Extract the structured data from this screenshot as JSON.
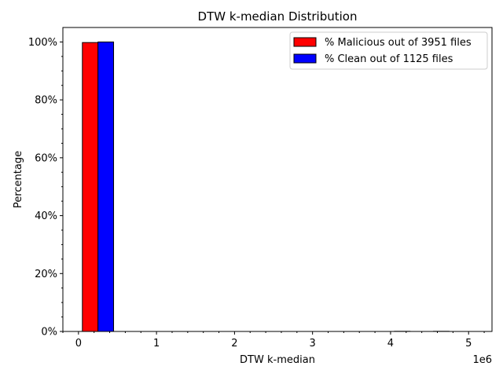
{
  "chart_data": {
    "type": "bar",
    "title": "DTW k-median Distribution",
    "xlabel": "DTW k-median",
    "ylabel": "Percentage",
    "x_offset_text": "1e6",
    "xlim": [
      -200000,
      5300000
    ],
    "ylim": [
      0,
      105
    ],
    "x_ticks": [
      0,
      1000000,
      2000000,
      3000000,
      4000000,
      5000000
    ],
    "x_tick_labels": [
      "0",
      "1",
      "2",
      "3",
      "4",
      "5"
    ],
    "y_ticks": [
      0,
      20,
      40,
      60,
      80,
      100
    ],
    "y_tick_labels": [
      "0%",
      "20%",
      "40%",
      "60%",
      "80%",
      "100%"
    ],
    "bin_edges": [
      50000,
      550000,
      1050000,
      1550000,
      2050000,
      2550000,
      3050000,
      3550000,
      4050000,
      4550000,
      5050000
    ],
    "grid": false,
    "legend_position": "top-right",
    "series": [
      {
        "name": "% Malicious out of 3951 files",
        "color": "#ff0000",
        "values": [
          99.8,
          0,
          0,
          0,
          0,
          0,
          0,
          0,
          0.05,
          0.05
        ]
      },
      {
        "name": "% Clean out of 1125 files",
        "color": "#0000ff",
        "values": [
          100,
          0,
          0,
          0,
          0,
          0,
          0,
          0,
          0,
          0
        ]
      }
    ]
  }
}
